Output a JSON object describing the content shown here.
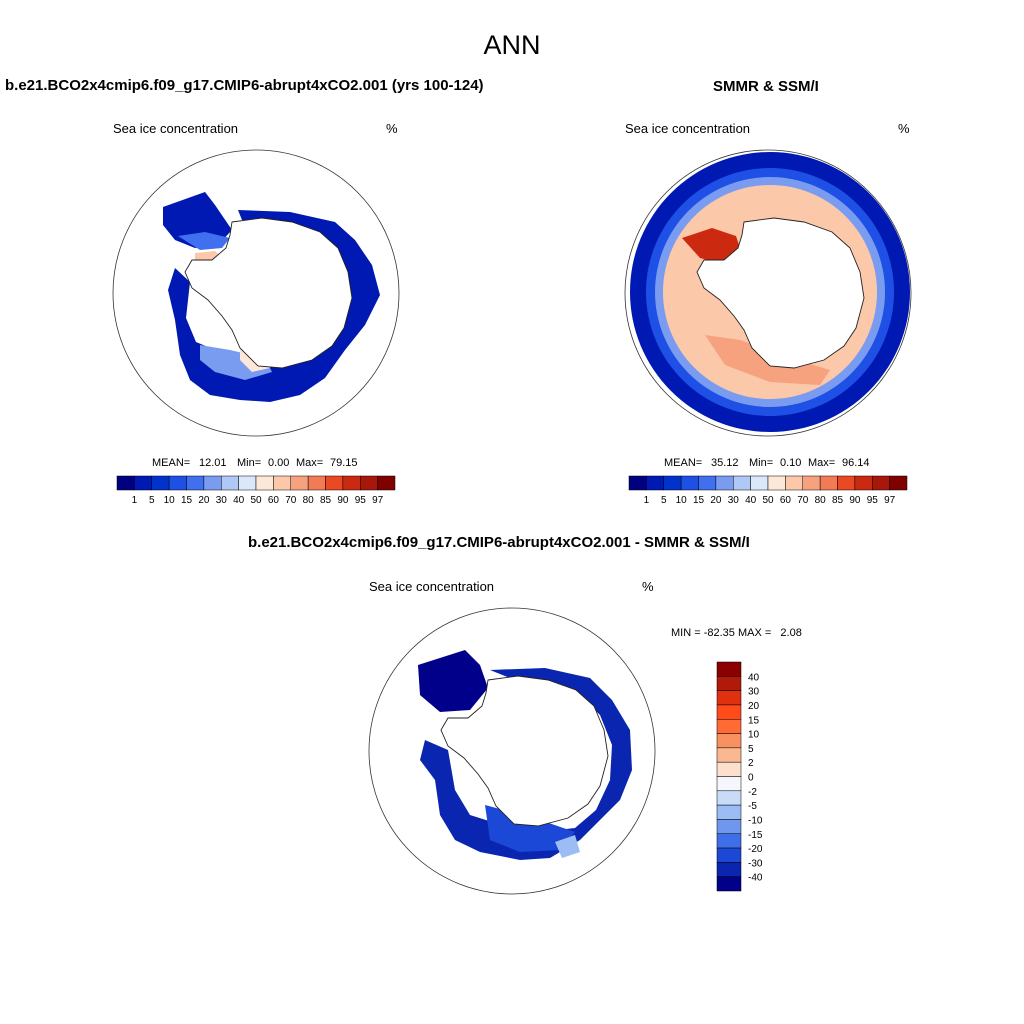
{
  "title": "ANN",
  "panels": [
    {
      "heading": "b.e21.BCO2x4cmip6.f09_g17.CMIP6-abrupt4xCO2.001 (yrs 100-124)",
      "variable": "Sea ice concentration",
      "units": "%",
      "stats": {
        "mean_label": "MEAN=",
        "mean": "12.01",
        "min_label": "Min=",
        "min": "0.00",
        "max_label": "Max=",
        "max": "79.15"
      }
    },
    {
      "heading": "SMMR & SSM/I",
      "variable": "Sea ice concentration",
      "units": "%",
      "stats": {
        "mean_label": "MEAN=",
        "mean": "35.12",
        "min_label": "Min=",
        "min": "0.10",
        "max_label": "Max=",
        "max": "96.14"
      }
    },
    {
      "heading": "b.e21.BCO2x4cmip6.f09_g17.CMIP6-abrupt4xCO2.001 - SMMR & SSM/I",
      "variable": "Sea ice concentration",
      "units": "%",
      "stats_text": "MIN = -82.35 MAX =   2.08"
    }
  ],
  "colorbar_concentration": {
    "labels": [
      "1",
      "5",
      "10",
      "15",
      "20",
      "30",
      "40",
      "50",
      "60",
      "70",
      "80",
      "85",
      "90",
      "95",
      "97"
    ],
    "colors": [
      "#000080",
      "#0019b3",
      "#0033cc",
      "#1f50e6",
      "#4070f0",
      "#7a9cf0",
      "#afc8f5",
      "#dbe8fb",
      "#fde7d8",
      "#fbc8aa",
      "#f6a27e",
      "#f27a55",
      "#ea4a23",
      "#cc2a10",
      "#a8180a",
      "#800000"
    ]
  },
  "colorbar_difference": {
    "labels": [
      "40",
      "30",
      "20",
      "15",
      "10",
      "5",
      "2",
      "0",
      "-2",
      "-5",
      "-10",
      "-15",
      "-20",
      "-30",
      "-40"
    ],
    "colors": [
      "#8b0000",
      "#b01a08",
      "#e03010",
      "#ff4a1a",
      "#ff6a35",
      "#f99060",
      "#fbb890",
      "#fde0cc",
      "#f5f7fc",
      "#c8dbf7",
      "#9bbcf4",
      "#6f97ee",
      "#3e6ee8",
      "#1b48d6",
      "#0a26b0",
      "#00008b"
    ]
  }
}
